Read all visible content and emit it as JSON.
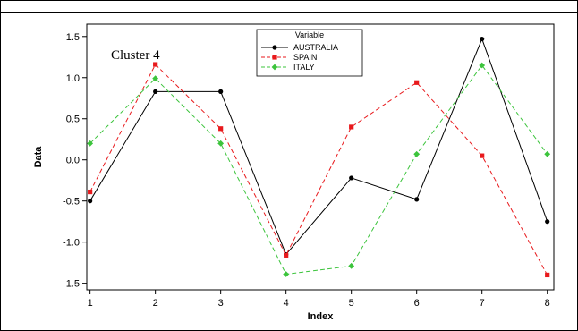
{
  "chart_data": {
    "type": "line",
    "title": "",
    "annotation": "Cluster 4",
    "xlabel": "Index",
    "ylabel": "Data",
    "x": [
      1,
      2,
      3,
      4,
      5,
      6,
      7,
      8
    ],
    "xlim": [
      0.95,
      8.1
    ],
    "ylim": [
      -1.58,
      1.65
    ],
    "yticks": [
      -1.5,
      -1.0,
      -0.5,
      0.0,
      0.5,
      1.0,
      1.5
    ],
    "ytick_labels": [
      "-1.5",
      "-1.0",
      "-0.5",
      "0.0",
      "0.5",
      "1.0",
      "1.5"
    ],
    "xtick_labels": [
      "1",
      "2",
      "3",
      "4",
      "5",
      "6",
      "7",
      "8"
    ],
    "grid": false,
    "legend": {
      "title": "Variable",
      "position": "top-center"
    },
    "series": [
      {
        "name": "AUSTRALIA",
        "color": "#000000",
        "dash": "solid",
        "marker": "circle",
        "values": [
          -0.5,
          0.83,
          0.83,
          -1.15,
          -0.22,
          -0.48,
          1.47,
          -0.75
        ]
      },
      {
        "name": "SPAIN",
        "color": "#e8191c",
        "dash": "dashed",
        "marker": "square",
        "values": [
          -0.39,
          1.16,
          0.38,
          -1.16,
          0.4,
          0.94,
          0.05,
          -1.4
        ]
      },
      {
        "name": "ITALY",
        "color": "#3cc43c",
        "dash": "dashed",
        "marker": "diamond",
        "values": [
          0.2,
          0.99,
          0.2,
          -1.39,
          -1.29,
          0.07,
          1.15,
          0.07
        ]
      }
    ]
  }
}
